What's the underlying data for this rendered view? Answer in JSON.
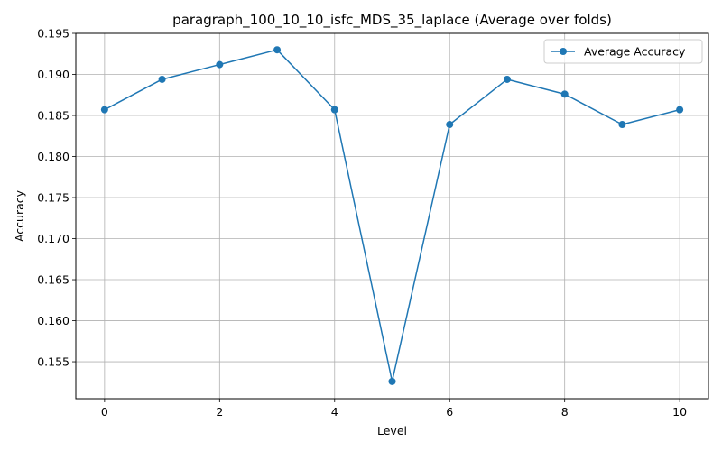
{
  "chart_data": {
    "type": "line",
    "title": "paragraph_100_10_10_isfc_MDS_35_laplace (Average over folds)",
    "xlabel": "Level",
    "ylabel": "Accuracy",
    "xlim": [
      -0.5,
      10.5
    ],
    "ylim": [
      0.1505,
      0.195
    ],
    "xticks": [
      0,
      2,
      4,
      6,
      8,
      10
    ],
    "yticks": [
      0.155,
      0.16,
      0.165,
      0.17,
      0.175,
      0.18,
      0.185,
      0.19,
      0.195
    ],
    "ytick_labels": [
      "0.155",
      "0.160",
      "0.165",
      "0.170",
      "0.175",
      "0.180",
      "0.185",
      "0.190",
      "0.195"
    ],
    "grid": true,
    "legend_position": "upper right",
    "series": [
      {
        "name": "Average Accuracy",
        "color": "#1f77b4",
        "marker": "circle",
        "x": [
          0,
          1,
          2,
          3,
          4,
          5,
          6,
          7,
          8,
          9,
          10
        ],
        "values": [
          0.1857,
          0.1894,
          0.1912,
          0.193,
          0.1857,
          0.1526,
          0.1839,
          0.1894,
          0.1876,
          0.1839,
          0.1857
        ]
      }
    ]
  }
}
